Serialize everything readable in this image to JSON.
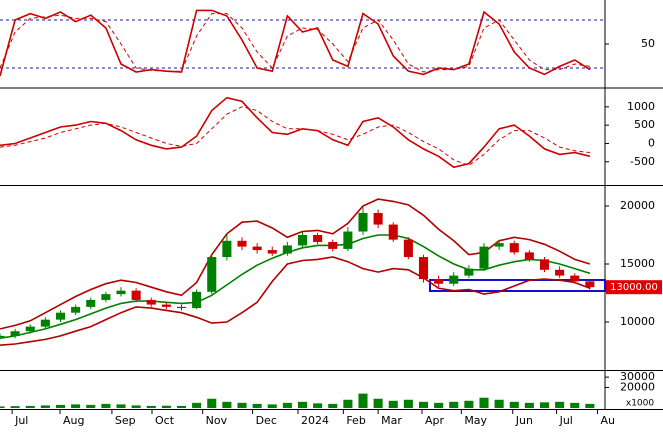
{
  "chart_data": [
    {
      "type": "line",
      "ylim": [
        0,
        100
      ],
      "yticks": [
        50
      ],
      "levels": [
        20,
        80
      ],
      "level_color": "#1a1aa6",
      "x": [
        0,
        1,
        2,
        3,
        4,
        5,
        6,
        7,
        8,
        9,
        10,
        11,
        12,
        13,
        14,
        15,
        16,
        17,
        18,
        19,
        20,
        21,
        22,
        23,
        24,
        25,
        26,
        27,
        28,
        29,
        30,
        31,
        32,
        33,
        34,
        35,
        36,
        37,
        38,
        39
      ],
      "xlim": [
        0,
        40
      ],
      "series": [
        {
          "color": "#d00000",
          "dash": true,
          "values": [
            20,
            65,
            82,
            84,
            86,
            82,
            82,
            78,
            50,
            20,
            17,
            16,
            16,
            60,
            88,
            88,
            70,
            40,
            20,
            60,
            70,
            68,
            50,
            28,
            70,
            80,
            55,
            25,
            15,
            18,
            18,
            22,
            70,
            80,
            55,
            30,
            18,
            18,
            25,
            22
          ]
        },
        {
          "color": "#cc0000",
          "dash": false,
          "values": [
            10,
            80,
            88,
            82,
            90,
            78,
            86,
            70,
            25,
            15,
            18,
            16,
            15,
            92,
            92,
            85,
            55,
            20,
            16,
            85,
            65,
            70,
            30,
            22,
            88,
            75,
            35,
            16,
            12,
            20,
            18,
            25,
            90,
            75,
            40,
            20,
            12,
            22,
            30,
            18
          ]
        }
      ]
    },
    {
      "type": "line",
      "ylim": [
        -1080,
        1460
      ],
      "yticks": [
        -500,
        0,
        500,
        1000
      ],
      "x": [
        0,
        1,
        2,
        3,
        4,
        5,
        6,
        7,
        8,
        9,
        10,
        11,
        12,
        13,
        14,
        15,
        16,
        17,
        18,
        19,
        20,
        21,
        22,
        23,
        24,
        25,
        26,
        27,
        28,
        29,
        30,
        31,
        32,
        33,
        34,
        35,
        36,
        37,
        38,
        39
      ],
      "xlim": [
        0,
        40
      ],
      "series": [
        {
          "color": "#d00000",
          "dash": true,
          "values": [
            -100,
            -50,
            50,
            150,
            300,
            400,
            500,
            550,
            450,
            300,
            150,
            0,
            -80,
            0,
            400,
            800,
            1000,
            900,
            600,
            400,
            400,
            350,
            250,
            100,
            250,
            450,
            500,
            300,
            50,
            -150,
            -450,
            -600,
            -300,
            100,
            350,
            350,
            150,
            -100,
            -200,
            -250
          ]
        },
        {
          "color": "#cc0000",
          "dash": false,
          "values": [
            -50,
            0,
            150,
            300,
            450,
            500,
            600,
            550,
            350,
            100,
            -50,
            -150,
            -100,
            200,
            900,
            1250,
            1150,
            700,
            300,
            250,
            400,
            350,
            100,
            -50,
            600,
            700,
            450,
            100,
            -150,
            -350,
            -650,
            -550,
            -100,
            400,
            500,
            200,
            -150,
            -300,
            -250,
            -350
          ]
        }
      ]
    },
    {
      "type": "candlestick",
      "ylim": [
        6030,
        21640
      ],
      "yticks": [
        10000,
        15000,
        20000
      ],
      "up_color": "#008000",
      "down_color": "#cc0000",
      "price_tag": {
        "value": 13000,
        "label": "13000.00"
      },
      "x": [
        0,
        1,
        2,
        3,
        4,
        5,
        6,
        7,
        8,
        9,
        10,
        11,
        12,
        13,
        14,
        15,
        16,
        17,
        18,
        19,
        20,
        21,
        22,
        23,
        24,
        25,
        26,
        27,
        28,
        29,
        30,
        31,
        32,
        33,
        34,
        35,
        36,
        37,
        38,
        39
      ],
      "xlim": [
        0,
        40
      ],
      "open": [
        8700,
        8800,
        9200,
        9600,
        10200,
        10800,
        11300,
        11900,
        12400,
        12700,
        11900,
        11500,
        11300,
        11200,
        12600,
        15600,
        17000,
        16500,
        16200,
        15900,
        16600,
        17500,
        16900,
        16300,
        17800,
        19400,
        18400,
        17100,
        15600,
        13700,
        13300,
        14000,
        14600,
        16500,
        16800,
        16000,
        15400,
        14500,
        14000,
        13500
      ],
      "high": [
        9000,
        9400,
        9800,
        10400,
        11000,
        11500,
        12100,
        12600,
        13000,
        12900,
        12100,
        11700,
        11500,
        12800,
        15900,
        17600,
        17300,
        16800,
        16500,
        16900,
        17800,
        17700,
        17100,
        18200,
        19900,
        19700,
        18600,
        17300,
        15800,
        14000,
        14300,
        14900,
        16800,
        17100,
        17000,
        16200,
        15600,
        14800,
        14200,
        13700
      ],
      "low": [
        8500,
        8600,
        9000,
        9400,
        10000,
        10600,
        11100,
        11700,
        12200,
        11700,
        11300,
        11100,
        11000,
        11100,
        12400,
        15300,
        16200,
        15900,
        15700,
        15700,
        16400,
        16700,
        16100,
        16100,
        17500,
        18100,
        16900,
        15400,
        13400,
        13000,
        13100,
        13800,
        14400,
        16200,
        15800,
        15200,
        14300,
        13800,
        13300,
        12800
      ],
      "close": [
        8800,
        9200,
        9600,
        10200,
        10800,
        11300,
        11900,
        12400,
        12700,
        11900,
        11500,
        11300,
        11200,
        12600,
        15600,
        17000,
        16500,
        16200,
        15900,
        16600,
        17500,
        16900,
        16300,
        17800,
        19400,
        18400,
        17100,
        15600,
        13700,
        13300,
        14000,
        14600,
        16500,
        16800,
        16000,
        15400,
        14500,
        14000,
        13500,
        13000
      ],
      "series": [
        {
          "color": "#008000",
          "dash": false,
          "values": [
            8600,
            8800,
            9100,
            9400,
            9800,
            10200,
            10700,
            11200,
            11600,
            11800,
            11800,
            11700,
            11600,
            11700,
            12300,
            13200,
            14100,
            14900,
            15500,
            16000,
            16400,
            16600,
            16600,
            16700,
            17200,
            17500,
            17500,
            17200,
            16500,
            15700,
            15000,
            14500,
            14500,
            14900,
            15200,
            15400,
            15300,
            15000,
            14600,
            14200
          ]
        },
        {
          "color": "#b00000",
          "dash": false,
          "values": [
            9400,
            9700,
            10100,
            10800,
            11500,
            12200,
            12800,
            13300,
            13600,
            13400,
            13000,
            12600,
            12300,
            13400,
            15800,
            17600,
            18600,
            18700,
            18100,
            17300,
            17800,
            17900,
            17600,
            18500,
            20000,
            20600,
            20400,
            20100,
            19200,
            18000,
            17000,
            15800,
            16000,
            17000,
            17300,
            17100,
            16700,
            16100,
            15400,
            15000
          ]
        },
        {
          "color": "#b00000",
          "dash": false,
          "values": [
            8000,
            8100,
            8300,
            8500,
            8800,
            9200,
            9600,
            10200,
            10800,
            11300,
            11200,
            11000,
            10800,
            10400,
            9900,
            10000,
            10800,
            11700,
            13500,
            15000,
            15300,
            15400,
            15600,
            15200,
            14600,
            14300,
            14600,
            14500,
            13800,
            12900,
            12700,
            12800,
            12400,
            12600,
            13100,
            13600,
            13700,
            13600,
            13400,
            12900
          ]
        }
      ]
    },
    {
      "type": "bar",
      "ylim": [
        0,
        35000
      ],
      "yticks": [
        20000,
        30000
      ],
      "unit": "x1000",
      "color": "#008000",
      "x": [
        0,
        1,
        2,
        3,
        4,
        5,
        6,
        7,
        8,
        9,
        10,
        11,
        12,
        13,
        14,
        15,
        16,
        17,
        18,
        19,
        20,
        21,
        22,
        23,
        24,
        25,
        26,
        27,
        28,
        29,
        30,
        31,
        32,
        33,
        34,
        35,
        36,
        37,
        38,
        39
      ],
      "xlim": [
        0,
        40
      ],
      "values": [
        1500,
        1800,
        2000,
        2500,
        3000,
        3500,
        3000,
        4000,
        3500,
        2500,
        2000,
        2200,
        2000,
        5000,
        9000,
        6000,
        5000,
        4000,
        3500,
        5000,
        6000,
        4500,
        4000,
        8000,
        14000,
        9000,
        7000,
        8000,
        6000,
        5000,
        6000,
        7000,
        10000,
        8000,
        6000,
        5000,
        5500,
        6000,
        5000,
        4000
      ],
      "xticks": [
        {
          "value": 0.8,
          "label": "Jul"
        },
        {
          "value": 3.97,
          "label": "Aug"
        },
        {
          "value": 7.4,
          "label": "Sep"
        },
        {
          "value": 10.05,
          "label": "Oct"
        },
        {
          "value": 13.4,
          "label": "Nov"
        },
        {
          "value": 16.7,
          "label": "Dec"
        },
        {
          "value": 19.7,
          "label": "2024"
        },
        {
          "value": 22.7,
          "label": "Feb"
        },
        {
          "value": 25,
          "label": "Mar"
        },
        {
          "value": 27.9,
          "label": "Apr"
        },
        {
          "value": 30.5,
          "label": "May"
        },
        {
          "value": 33.9,
          "label": "Jun"
        },
        {
          "value": 36.8,
          "label": "Jul"
        },
        {
          "value": 39.5,
          "label": "Au"
        }
      ]
    }
  ]
}
